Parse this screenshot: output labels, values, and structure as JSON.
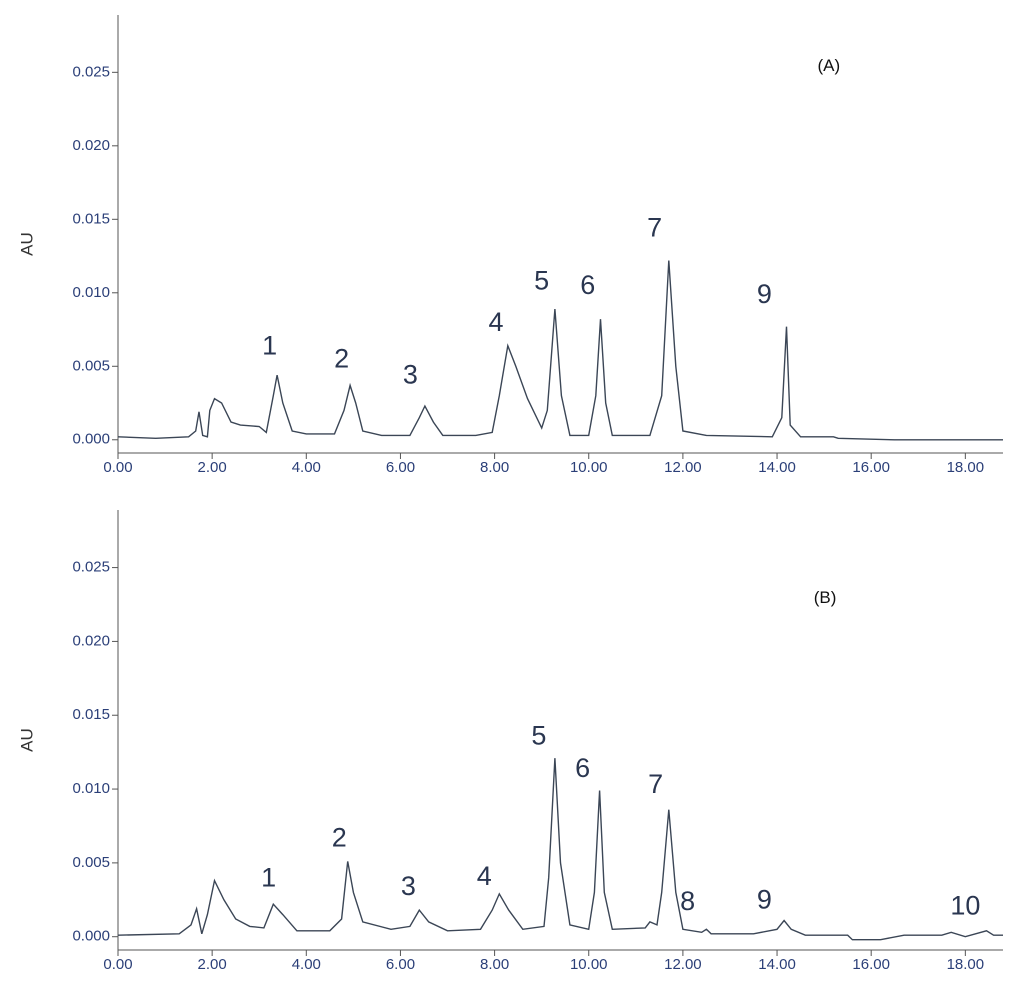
{
  "chart_data": [
    {
      "type": "line",
      "y_label": "AU",
      "color": "#3b4656",
      "xlim": [
        0,
        18.8
      ],
      "ylim": [
        -0.0009,
        0.0289
      ],
      "xticks": [
        {
          "value": 0,
          "label": "0.00"
        },
        {
          "value": 2,
          "label": "2.00"
        },
        {
          "value": 4,
          "label": "4.00"
        },
        {
          "value": 6,
          "label": "6.00"
        },
        {
          "value": 8,
          "label": "8.00"
        },
        {
          "value": 10,
          "label": "10.00"
        },
        {
          "value": 12,
          "label": "12.00"
        },
        {
          "value": 14,
          "label": "14.00"
        },
        {
          "value": 16,
          "label": "16.00"
        },
        {
          "value": 18,
          "label": "18.00"
        }
      ],
      "yticks": [
        {
          "value": 0,
          "label": "0.000"
        },
        {
          "value": 0.005,
          "label": "0.005"
        },
        {
          "value": 0.01,
          "label": "0.010"
        },
        {
          "value": 0.015,
          "label": "0.015"
        },
        {
          "value": 0.02,
          "label": "0.020"
        },
        {
          "value": 0.025,
          "label": "0.025"
        }
      ],
      "x": [
        0,
        0.8,
        1.5,
        1.65,
        1.72,
        1.8,
        1.9,
        1.95,
        2.05,
        2.2,
        2.4,
        2.6,
        3.0,
        3.15,
        3.3,
        3.38,
        3.5,
        3.7,
        4.0,
        4.6,
        4.8,
        4.93,
        5.05,
        5.2,
        5.6,
        6.2,
        6.4,
        6.52,
        6.7,
        6.9,
        7.6,
        7.95,
        8.1,
        8.28,
        8.45,
        8.7,
        9.0,
        9.12,
        9.28,
        9.42,
        9.6,
        10.0,
        10.15,
        10.25,
        10.36,
        10.5,
        11.3,
        11.55,
        11.7,
        11.85,
        12.0,
        12.5,
        13.9,
        14.1,
        14.2,
        14.28,
        14.5,
        15.2,
        15.3,
        16.5,
        18.8
      ],
      "values": [
        0.0002,
        0.0001,
        0.0002,
        0.0006,
        0.0019,
        0.0003,
        0.0002,
        0.002,
        0.0028,
        0.0025,
        0.0012,
        0.001,
        0.0009,
        0.0005,
        0.003,
        0.0044,
        0.0025,
        0.0006,
        0.0004,
        0.0004,
        0.002,
        0.0037,
        0.0025,
        0.0006,
        0.0003,
        0.0003,
        0.0015,
        0.0023,
        0.0012,
        0.0003,
        0.0003,
        0.0005,
        0.003,
        0.0064,
        0.005,
        0.0028,
        0.0008,
        0.002,
        0.0089,
        0.003,
        0.0003,
        0.0003,
        0.003,
        0.0082,
        0.0025,
        0.0003,
        0.0003,
        0.003,
        0.0122,
        0.005,
        0.0006,
        0.0003,
        0.0002,
        0.0015,
        0.0077,
        0.001,
        0.0002,
        0.0002,
        0.0001,
        0,
        0
      ],
      "annotations": [
        {
          "text": "(A)",
          "x": 15.1,
          "y": 0.0254
        },
        {
          "text": "1",
          "x": 3.22,
          "y": 0.0063
        },
        {
          "text": "2",
          "x": 4.75,
          "y": 0.0054
        },
        {
          "text": "3",
          "x": 6.21,
          "y": 0.0043
        },
        {
          "text": "4",
          "x": 8.03,
          "y": 0.0079
        },
        {
          "text": "5",
          "x": 9.0,
          "y": 0.0107
        },
        {
          "text": "6",
          "x": 9.98,
          "y": 0.0104
        },
        {
          "text": "7",
          "x": 11.4,
          "y": 0.0143
        },
        {
          "text": "9",
          "x": 13.73,
          "y": 0.0098
        }
      ]
    },
    {
      "type": "line",
      "y_label": "AU",
      "color": "#3b4656",
      "xlim": [
        0,
        18.8
      ],
      "ylim": [
        -0.0009,
        0.0289
      ],
      "xticks": [
        {
          "value": 0,
          "label": "0.00"
        },
        {
          "value": 2,
          "label": "2.00"
        },
        {
          "value": 4,
          "label": "4.00"
        },
        {
          "value": 6,
          "label": "6.00"
        },
        {
          "value": 8,
          "label": "8.00"
        },
        {
          "value": 10,
          "label": "10.00"
        },
        {
          "value": 12,
          "label": "12.00"
        },
        {
          "value": 14,
          "label": "14.00"
        },
        {
          "value": 16,
          "label": "16.00"
        },
        {
          "value": 18,
          "label": "18.00"
        }
      ],
      "yticks": [
        {
          "value": 0,
          "label": "0.000"
        },
        {
          "value": 0.005,
          "label": "0.005"
        },
        {
          "value": 0.01,
          "label": "0.010"
        },
        {
          "value": 0.015,
          "label": "0.015"
        },
        {
          "value": 0.02,
          "label": "0.020"
        },
        {
          "value": 0.025,
          "label": "0.025"
        }
      ],
      "x": [
        0,
        1.3,
        1.55,
        1.67,
        1.78,
        1.9,
        2.05,
        2.25,
        2.5,
        2.8,
        3.1,
        3.3,
        3.5,
        3.8,
        4.5,
        4.75,
        4.88,
        5.0,
        5.2,
        5.8,
        6.2,
        6.4,
        6.6,
        7.0,
        7.7,
        7.95,
        8.1,
        8.3,
        8.6,
        9.05,
        9.15,
        9.28,
        9.4,
        9.6,
        10.0,
        10.12,
        10.23,
        10.33,
        10.5,
        11.2,
        11.3,
        11.45,
        11.55,
        11.7,
        11.85,
        12.0,
        12.4,
        12.5,
        12.6,
        13.5,
        14.0,
        14.15,
        14.3,
        14.6,
        15.5,
        15.6,
        16.2,
        16.7,
        17.5,
        17.7,
        18.0,
        18.45,
        18.6,
        18.8
      ],
      "values": [
        0.0001,
        0.0002,
        0.0008,
        0.0019,
        0.0002,
        0.0015,
        0.0038,
        0.0025,
        0.0012,
        0.0007,
        0.0006,
        0.0022,
        0.0015,
        0.0004,
        0.0004,
        0.0012,
        0.0051,
        0.003,
        0.001,
        0.0005,
        0.0007,
        0.0018,
        0.001,
        0.0004,
        0.0005,
        0.0018,
        0.0029,
        0.0018,
        0.0005,
        0.0007,
        0.004,
        0.0121,
        0.005,
        0.0008,
        0.0005,
        0.003,
        0.0099,
        0.003,
        0.0005,
        0.0006,
        0.001,
        0.0008,
        0.003,
        0.0086,
        0.003,
        0.0005,
        0.0003,
        0.0005,
        0.0002,
        0.0002,
        0.0005,
        0.0011,
        0.0005,
        0.0001,
        0.0001,
        -0.0002,
        -0.0002,
        0.0001,
        0.0001,
        0.0003,
        0,
        0.0004,
        0.0001,
        0.0001
      ],
      "annotations": [
        {
          "text": "(B)",
          "x": 15.02,
          "y": 0.0229
        },
        {
          "text": "1",
          "x": 3.2,
          "y": 0.0039
        },
        {
          "text": "2",
          "x": 4.7,
          "y": 0.0066
        },
        {
          "text": "3",
          "x": 6.17,
          "y": 0.0033
        },
        {
          "text": "4",
          "x": 7.78,
          "y": 0.004
        },
        {
          "text": "5",
          "x": 8.94,
          "y": 0.0135
        },
        {
          "text": "6",
          "x": 9.87,
          "y": 0.0113
        },
        {
          "text": "7",
          "x": 11.42,
          "y": 0.0102
        },
        {
          "text": "8",
          "x": 12.1,
          "y": 0.0023
        },
        {
          "text": "9",
          "x": 13.73,
          "y": 0.0024
        },
        {
          "text": "10",
          "x": 18.0,
          "y": 0.002
        }
      ]
    }
  ]
}
